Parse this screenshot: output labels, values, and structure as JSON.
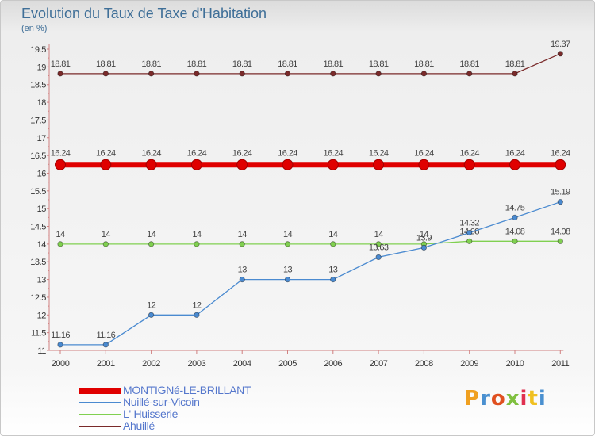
{
  "chart_data": {
    "type": "line",
    "title": "Evolution du Taux de Taxe d'Habitation",
    "subtitle": "(en %)",
    "xlabel": "",
    "ylabel": "(en %)",
    "categories": [
      "2000",
      "2001",
      "2002",
      "2003",
      "2004",
      "2005",
      "2006",
      "2007",
      "2008",
      "2009",
      "2010",
      "2011"
    ],
    "ylim": [
      11,
      19.5
    ],
    "yticks": [
      "11",
      "11.5",
      "12",
      "12.5",
      "13",
      "13.5",
      "14",
      "14.5",
      "15",
      "15.5",
      "16",
      "16.5",
      "17",
      "17.5",
      "18",
      "18.5",
      "19",
      "19.5"
    ],
    "grid": false,
    "legend_position": "bottom-left",
    "series": [
      {
        "name": "MONTIGNé-LE-BRILLANT",
        "color": "#e00000",
        "values": [
          16.24,
          16.24,
          16.24,
          16.24,
          16.24,
          16.24,
          16.24,
          16.24,
          16.24,
          16.24,
          16.24,
          16.24
        ],
        "labels": [
          "16.24",
          "16.24",
          "16.24",
          "16.24",
          "16.24",
          "16.24",
          "16.24",
          "16.24",
          "16.24",
          "16.24",
          "16.24",
          "16.24"
        ]
      },
      {
        "name": "Nuillé-sur-Vicoin",
        "color": "#4a8ad0",
        "values": [
          11.16,
          11.16,
          12,
          12,
          13,
          13,
          13,
          13.63,
          13.9,
          14.32,
          14.75,
          15.19
        ],
        "labels": [
          "11.16",
          "11.16",
          "12",
          "12",
          "13",
          "13",
          "13",
          "13.63",
          "13.9",
          "14.32",
          "14.75",
          "15.19"
        ]
      },
      {
        "name": "L' Huisserie",
        "color": "#80d050",
        "values": [
          14,
          14,
          14,
          14,
          14,
          14,
          14,
          14,
          14,
          14.08,
          14.08,
          14.08
        ],
        "labels": [
          "14",
          "14",
          "14",
          "14",
          "14",
          "14",
          "14",
          "14",
          "14",
          "14.08",
          "14.08",
          "14.08"
        ]
      },
      {
        "name": "Ahuillé",
        "color": "#7a2a2a",
        "values": [
          18.81,
          18.81,
          18.81,
          18.81,
          18.81,
          18.81,
          18.81,
          18.81,
          18.81,
          18.81,
          18.81,
          19.37
        ],
        "labels": [
          "18.81",
          "18.81",
          "18.81",
          "18.81",
          "18.81",
          "18.81",
          "18.81",
          "18.81",
          "18.81",
          "18.81",
          "18.81",
          "19.37"
        ]
      }
    ]
  },
  "logo": {
    "text": "Proxiti",
    "colors": [
      "#f0a020",
      "#4a90d0",
      "#e05020",
      "#80c040",
      "#e03050",
      "#f0c020",
      "#4a90d0"
    ]
  }
}
